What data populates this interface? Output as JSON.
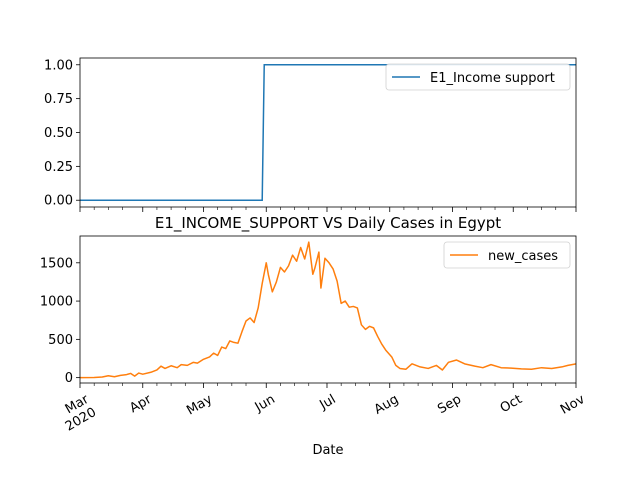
{
  "chart_data": [
    {
      "type": "line",
      "title": "",
      "xlabel": "",
      "ylabel": "",
      "xlim": [
        "2020-03-01",
        "2020-11-01"
      ],
      "ylim": [
        -0.05,
        1.05
      ],
      "yticks": [
        0.0,
        0.25,
        0.5,
        0.75,
        1.0
      ],
      "ytick_labels": [
        "0.00",
        "0.25",
        "0.50",
        "0.75",
        "1.00"
      ],
      "legend": {
        "placement": "top-right"
      },
      "grid": false,
      "series": [
        {
          "name": "E1_Income support",
          "color": "#1f77b4",
          "points": [
            [
              "2020-03-01",
              0
            ],
            [
              "2020-05-30",
              0
            ],
            [
              "2020-05-31",
              1
            ],
            [
              "2020-11-01",
              1
            ]
          ]
        }
      ]
    },
    {
      "type": "line",
      "title": "E1_INCOME_SUPPORT VS Daily Cases in Egypt",
      "xlabel": "Date",
      "ylabel": "",
      "xlim": [
        "2020-03-01",
        "2020-11-01"
      ],
      "ylim": [
        -70,
        1850
      ],
      "yticks": [
        0,
        500,
        1000,
        1500
      ],
      "ytick_labels": [
        "0",
        "500",
        "1000",
        "1500"
      ],
      "xtick_labels": [
        "Mar\n2020",
        "Apr",
        "May",
        "Jun",
        "Jul",
        "Aug",
        "Sep",
        "Oct",
        "Nov"
      ],
      "legend": {
        "placement": "top-right"
      },
      "grid": false,
      "series": [
        {
          "name": "new_cases",
          "color": "#ff7f0e",
          "points": [
            [
              "2020-03-01",
              0
            ],
            [
              "2020-03-08",
              2
            ],
            [
              "2020-03-12",
              8
            ],
            [
              "2020-03-15",
              25
            ],
            [
              "2020-03-18",
              12
            ],
            [
              "2020-03-21",
              30
            ],
            [
              "2020-03-24",
              40
            ],
            [
              "2020-03-26",
              55
            ],
            [
              "2020-03-28",
              20
            ],
            [
              "2020-03-30",
              60
            ],
            [
              "2020-04-01",
              45
            ],
            [
              "2020-04-05",
              70
            ],
            [
              "2020-04-08",
              100
            ],
            [
              "2020-04-10",
              150
            ],
            [
              "2020-04-12",
              120
            ],
            [
              "2020-04-15",
              155
            ],
            [
              "2020-04-18",
              130
            ],
            [
              "2020-04-20",
              170
            ],
            [
              "2020-04-23",
              160
            ],
            [
              "2020-04-26",
              200
            ],
            [
              "2020-04-28",
              190
            ],
            [
              "2020-05-01",
              240
            ],
            [
              "2020-05-04",
              270
            ],
            [
              "2020-05-06",
              320
            ],
            [
              "2020-05-08",
              290
            ],
            [
              "2020-05-10",
              400
            ],
            [
              "2020-05-12",
              380
            ],
            [
              "2020-05-14",
              480
            ],
            [
              "2020-05-16",
              460
            ],
            [
              "2020-05-18",
              450
            ],
            [
              "2020-05-20",
              600
            ],
            [
              "2020-05-22",
              740
            ],
            [
              "2020-05-24",
              780
            ],
            [
              "2020-05-26",
              720
            ],
            [
              "2020-05-28",
              910
            ],
            [
              "2020-05-30",
              1230
            ],
            [
              "2020-06-01",
              1500
            ],
            [
              "2020-06-02",
              1350
            ],
            [
              "2020-06-04",
              1120
            ],
            [
              "2020-06-06",
              1250
            ],
            [
              "2020-06-08",
              1440
            ],
            [
              "2020-06-10",
              1380
            ],
            [
              "2020-06-12",
              1460
            ],
            [
              "2020-06-14",
              1600
            ],
            [
              "2020-06-16",
              1520
            ],
            [
              "2020-06-18",
              1700
            ],
            [
              "2020-06-20",
              1550
            ],
            [
              "2020-06-22",
              1770
            ],
            [
              "2020-06-24",
              1350
            ],
            [
              "2020-06-25",
              1430
            ],
            [
              "2020-06-27",
              1640
            ],
            [
              "2020-06-28",
              1170
            ],
            [
              "2020-06-30",
              1560
            ],
            [
              "2020-07-02",
              1500
            ],
            [
              "2020-07-04",
              1420
            ],
            [
              "2020-07-06",
              1260
            ],
            [
              "2020-07-08",
              970
            ],
            [
              "2020-07-10",
              1000
            ],
            [
              "2020-07-12",
              920
            ],
            [
              "2020-07-14",
              930
            ],
            [
              "2020-07-16",
              910
            ],
            [
              "2020-07-18",
              690
            ],
            [
              "2020-07-20",
              630
            ],
            [
              "2020-07-22",
              670
            ],
            [
              "2020-07-24",
              650
            ],
            [
              "2020-07-26",
              540
            ],
            [
              "2020-07-28",
              440
            ],
            [
              "2020-07-30",
              360
            ],
            [
              "2020-08-02",
              270
            ],
            [
              "2020-08-04",
              160
            ],
            [
              "2020-08-06",
              120
            ],
            [
              "2020-08-09",
              110
            ],
            [
              "2020-08-12",
              180
            ],
            [
              "2020-08-16",
              140
            ],
            [
              "2020-08-20",
              120
            ],
            [
              "2020-08-24",
              160
            ],
            [
              "2020-08-27",
              100
            ],
            [
              "2020-08-30",
              200
            ],
            [
              "2020-09-03",
              230
            ],
            [
              "2020-09-07",
              180
            ],
            [
              "2020-09-12",
              150
            ],
            [
              "2020-09-16",
              130
            ],
            [
              "2020-09-20",
              170
            ],
            [
              "2020-09-25",
              130
            ],
            [
              "2020-09-30",
              125
            ],
            [
              "2020-10-05",
              115
            ],
            [
              "2020-10-10",
              110
            ],
            [
              "2020-10-15",
              130
            ],
            [
              "2020-10-20",
              120
            ],
            [
              "2020-10-25",
              140
            ],
            [
              "2020-10-28",
              160
            ],
            [
              "2020-11-01",
              180
            ]
          ]
        }
      ]
    }
  ]
}
